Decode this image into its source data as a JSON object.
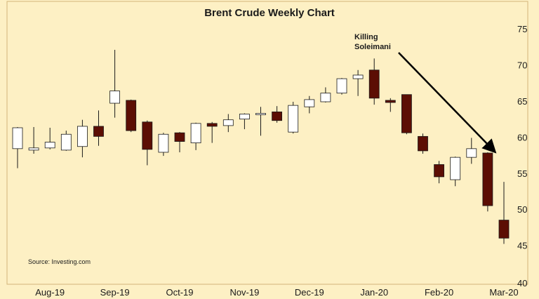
{
  "chart_data": {
    "type": "candlestick",
    "title": "Brent Crude Weekly Chart",
    "source": "Source: Investing.com",
    "ylim": [
      40,
      75
    ],
    "yticks": [
      45,
      50,
      55,
      60,
      65,
      70,
      75
    ],
    "ytick_labels": [
      "45",
      "50",
      "55",
      "60",
      "65",
      "70",
      "75"
    ],
    "y_axis_position": "right",
    "grid": false,
    "x_labels": [
      {
        "label": "Aug-19",
        "at_candle": 2
      },
      {
        "label": "Sep-19",
        "at_candle": 6
      },
      {
        "label": "Oct-19",
        "at_candle": 10
      },
      {
        "label": "Nov-19",
        "at_candle": 14
      },
      {
        "label": "Dec-19",
        "at_candle": 18
      },
      {
        "label": "Jan-20",
        "at_candle": 22
      },
      {
        "label": "Feb-20",
        "at_candle": 26
      },
      {
        "label": "Mar-20",
        "at_candle": 30
      }
    ],
    "colors": {
      "up": "#ffffff",
      "down": "#5c0e04",
      "wick": "#1a1a1a",
      "arrow": "#000000",
      "background": "#fdf0c4"
    },
    "candles": [
      {
        "o": 58.5,
        "h": 61.5,
        "l": 55.8,
        "c": 61.4
      },
      {
        "o": 58.3,
        "h": 61.5,
        "l": 57.8,
        "c": 58.6
      },
      {
        "o": 58.6,
        "h": 61.4,
        "l": 58.4,
        "c": 59.4
      },
      {
        "o": 58.3,
        "h": 61.0,
        "l": 58.2,
        "c": 60.5
      },
      {
        "o": 58.8,
        "h": 62.5,
        "l": 57.3,
        "c": 61.6
      },
      {
        "o": 61.6,
        "h": 63.8,
        "l": 58.9,
        "c": 60.2
      },
      {
        "o": 64.8,
        "h": 72.2,
        "l": 62.8,
        "c": 66.5
      },
      {
        "o": 65.2,
        "h": 65.3,
        "l": 60.8,
        "c": 61.0
      },
      {
        "o": 62.2,
        "h": 62.4,
        "l": 56.2,
        "c": 58.4
      },
      {
        "o": 58.0,
        "h": 60.7,
        "l": 57.5,
        "c": 60.5
      },
      {
        "o": 60.7,
        "h": 60.8,
        "l": 58.0,
        "c": 59.5
      },
      {
        "o": 59.3,
        "h": 62.1,
        "l": 58.3,
        "c": 62.0
      },
      {
        "o": 62.0,
        "h": 62.2,
        "l": 59.3,
        "c": 61.6
      },
      {
        "o": 61.7,
        "h": 63.3,
        "l": 60.8,
        "c": 62.5
      },
      {
        "o": 62.6,
        "h": 63.4,
        "l": 61.2,
        "c": 63.3
      },
      {
        "o": 63.2,
        "h": 64.3,
        "l": 60.3,
        "c": 63.4
      },
      {
        "o": 63.6,
        "h": 64.4,
        "l": 62.1,
        "c": 62.4
      },
      {
        "o": 60.8,
        "h": 65.0,
        "l": 60.6,
        "c": 64.5
      },
      {
        "o": 64.3,
        "h": 65.8,
        "l": 63.4,
        "c": 65.3
      },
      {
        "o": 65.0,
        "h": 67.0,
        "l": 64.9,
        "c": 66.2
      },
      {
        "o": 66.2,
        "h": 68.3,
        "l": 66.0,
        "c": 68.2
      },
      {
        "o": 68.2,
        "h": 69.4,
        "l": 65.8,
        "c": 68.7
      },
      {
        "o": 69.4,
        "h": 71.0,
        "l": 64.6,
        "c": 65.5
      },
      {
        "o": 65.2,
        "h": 65.5,
        "l": 63.6,
        "c": 64.9
      },
      {
        "o": 66.0,
        "h": 66.0,
        "l": 60.5,
        "c": 60.7
      },
      {
        "o": 60.2,
        "h": 60.6,
        "l": 57.8,
        "c": 58.2
      },
      {
        "o": 56.3,
        "h": 56.8,
        "l": 53.7,
        "c": 54.6
      },
      {
        "o": 54.2,
        "h": 57.4,
        "l": 53.3,
        "c": 57.3
      },
      {
        "o": 57.3,
        "h": 60.0,
        "l": 56.4,
        "c": 58.5
      },
      {
        "o": 57.9,
        "h": 58.0,
        "l": 49.8,
        "c": 50.6
      },
      {
        "o": 48.6,
        "h": 53.9,
        "l": 45.3,
        "c": 46.1
      }
    ],
    "annotations": [
      {
        "text": [
          "Killing",
          "Soleimani"
        ],
        "arrow_to_candle": 29
      }
    ]
  }
}
